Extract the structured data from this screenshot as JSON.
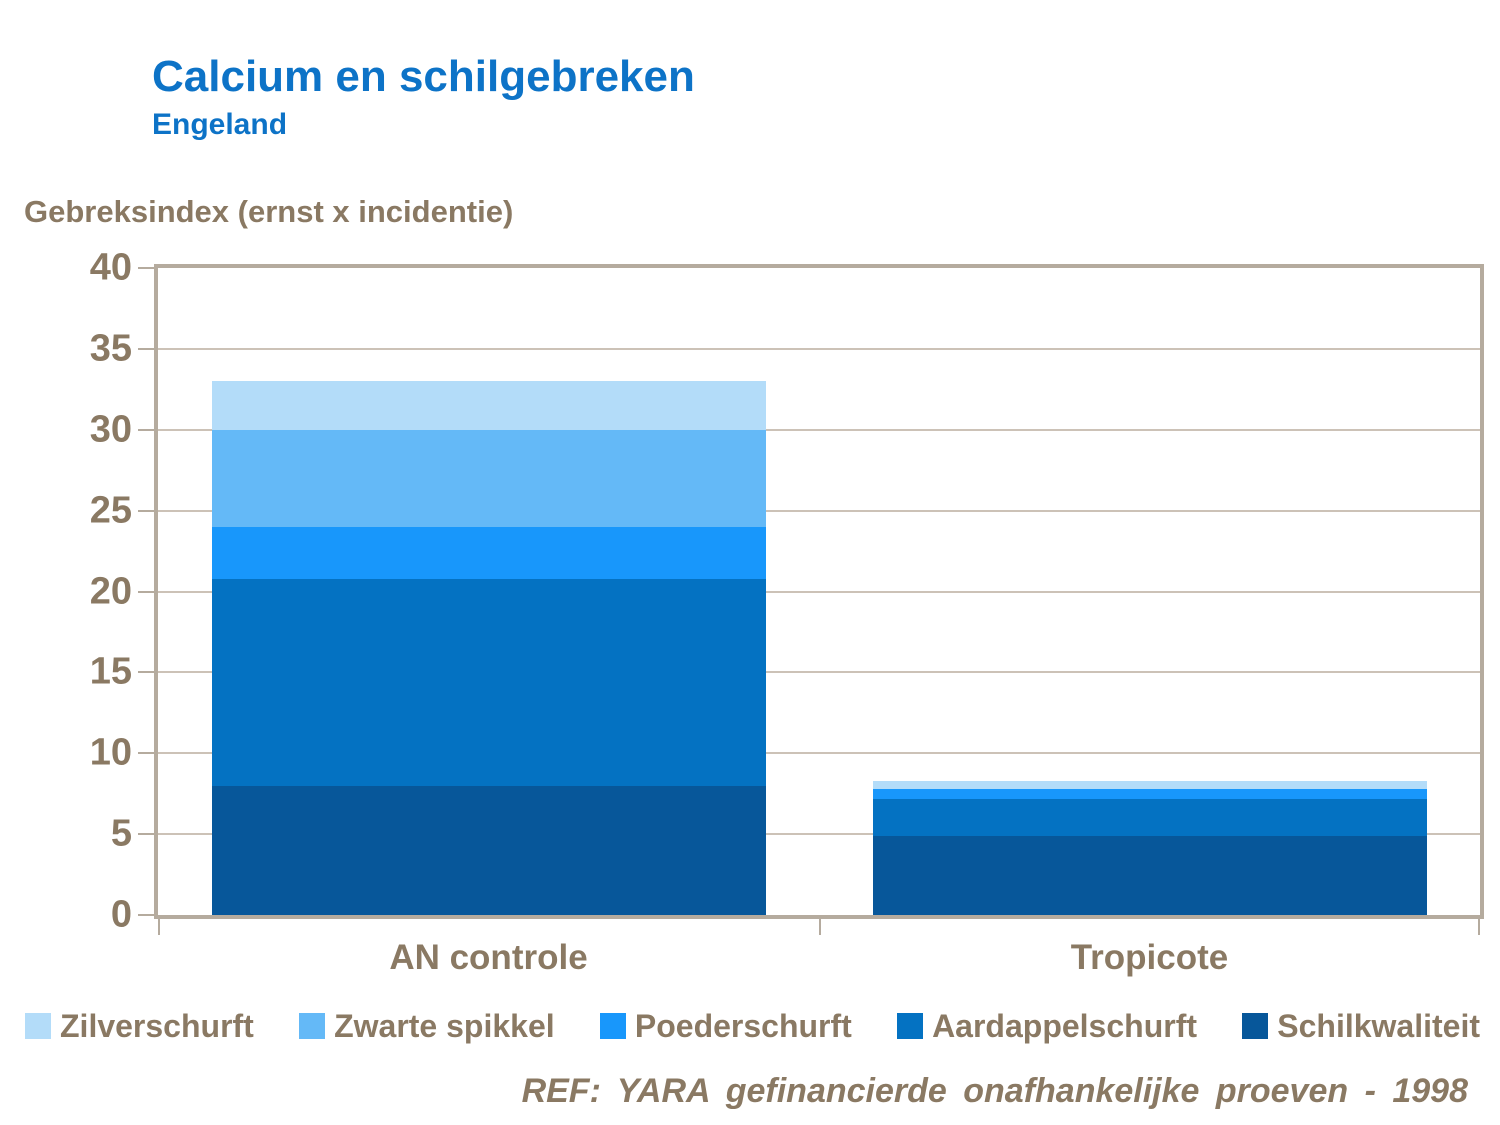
{
  "header": {
    "title": "Calcium en schilgebreken",
    "subtitle": "Engeland"
  },
  "axis_title": "Gebreksindex (ernst x incidentie)",
  "footer": {
    "text": "REF: YARA gefinancierde onafhankelijke proeven - 1998"
  },
  "colors": {
    "title_blue": "#0D73C7",
    "label_brown": "#8A7963",
    "frame_tan": "#B5AB9E",
    "gridline_tan": "#CCC2B7",
    "background": "#FFFFFF"
  },
  "chart_data": {
    "type": "bar",
    "stacked": true,
    "title": "Calcium en schilgebreken",
    "subtitle": "Engeland",
    "ylabel": "Gebreksindex (ernst x incidentie)",
    "xlabel": "",
    "ylim": [
      0,
      40
    ],
    "yticks": [
      0,
      5,
      10,
      15,
      20,
      25,
      30,
      35,
      40
    ],
    "grid": true,
    "legend_position": "bottom",
    "categories": [
      "AN controle",
      "Tropicote"
    ],
    "series": [
      {
        "name": "Schilkwaliteit",
        "color": "#07579A",
        "values": [
          8.0,
          4.9
        ]
      },
      {
        "name": "Aardappelschurft",
        "color": "#0472C2",
        "values": [
          12.8,
          2.3
        ]
      },
      {
        "name": "Poederschurft",
        "color": "#1897FB",
        "values": [
          3.2,
          0.6
        ]
      },
      {
        "name": "Zwarte spikkel",
        "color": "#64B9F7",
        "values": [
          6.0,
          0.0
        ]
      },
      {
        "name": "Zilverschurft",
        "color": "#B3DCF9",
        "values": [
          3.0,
          0.5
        ]
      }
    ],
    "legend_order": [
      "Zilverschurft",
      "Zwarte spikkel",
      "Poederschurft",
      "Aardappelschurft",
      "Schilkwaliteit"
    ],
    "totals": [
      33.0,
      8.3
    ]
  }
}
